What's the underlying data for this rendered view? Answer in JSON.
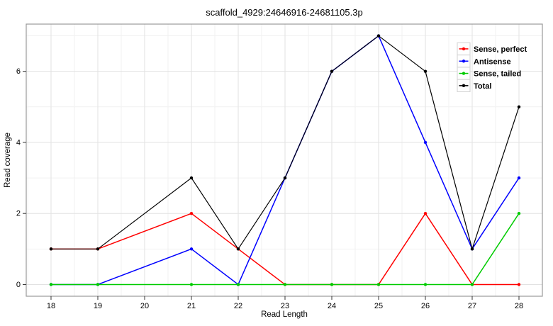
{
  "figure": {
    "background": "#ffffff",
    "panel_border_color": "#999999",
    "grid_major_color": "#e2e2e2",
    "grid_minor_color": "#f1f1f1",
    "tick_color": "#333333",
    "legend_key_fill": "#ffffff",
    "legend_key_border": "#d2d2d2"
  },
  "chart_data": {
    "type": "line",
    "title": "scaffold_4929:24646916-24681105.3p",
    "xlabel": "Read Length",
    "ylabel": "Read coverage",
    "x": [
      18,
      19,
      21,
      22,
      23,
      24,
      25,
      26,
      27,
      28
    ],
    "series": [
      {
        "name": "Sense, perfect",
        "color": "#ff0000",
        "values": [
          1,
          1,
          2,
          1,
          0,
          0,
          0,
          2,
          0,
          0
        ]
      },
      {
        "name": "Antisense",
        "color": "#0000ff",
        "values": [
          0,
          0,
          1,
          0,
          3,
          6,
          7,
          4,
          1,
          3
        ]
      },
      {
        "name": "Sense, tailed",
        "color": "#00cc00",
        "values": [
          0,
          0,
          0,
          0,
          0,
          0,
          0,
          0,
          0,
          2
        ]
      },
      {
        "name": "Total",
        "color": "#000000",
        "values": [
          1,
          1,
          3,
          1,
          3,
          6,
          7,
          6,
          1,
          5
        ]
      }
    ],
    "xlim": [
      17.47,
      28.5
    ],
    "ylim": [
      -0.33,
      7.33
    ],
    "x_ticks": [
      18,
      19,
      20,
      21,
      22,
      23,
      24,
      25,
      26,
      27,
      28
    ],
    "y_ticks": [
      0,
      2,
      4,
      6
    ],
    "x_minor_step": 0.5,
    "y_minor_step": 1,
    "grid": "on",
    "marker": "filled-circle",
    "legend_position": "top-right",
    "legend_glyph": "line-with-center-dot"
  }
}
